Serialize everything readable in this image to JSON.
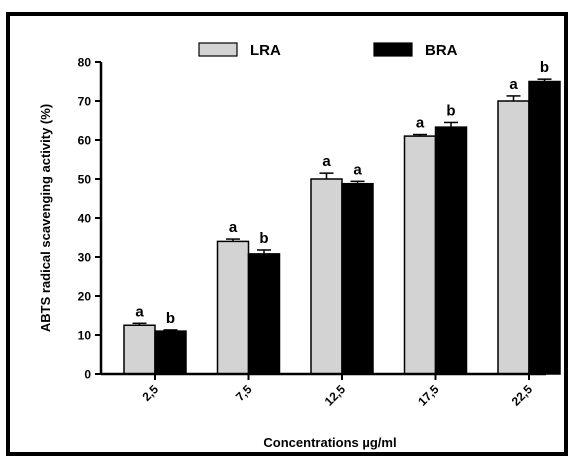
{
  "chart_data": {
    "type": "bar",
    "categories": [
      "2,5",
      "7,5",
      "12,5",
      "17,5",
      "22,5"
    ],
    "series": [
      {
        "name": "LRA",
        "color": "#d3d3d3",
        "values": [
          12.5,
          34,
          50,
          61,
          70
        ],
        "errors": [
          0.5,
          0.6,
          1.5,
          0.4,
          1.3
        ],
        "labels": [
          "a",
          "a",
          "a",
          "a",
          "a"
        ]
      },
      {
        "name": "BRA",
        "color": "#000000",
        "values": [
          11,
          30.8,
          48.8,
          63.3,
          75
        ],
        "errors": [
          0.3,
          1.0,
          0.6,
          1.2,
          0.6
        ],
        "labels": [
          "b",
          "b",
          "a",
          "b",
          "b"
        ]
      }
    ],
    "yticks": [
      "0",
      "10",
      "20",
      "30",
      "40",
      "50",
      "60",
      "70",
      "80"
    ],
    "ylim": [
      0,
      80
    ],
    "xlabel": "Concentrations µg/ml",
    "ylabel": "ABTS radical scavenging activity (%)",
    "grid": false,
    "legend": "top-center"
  }
}
